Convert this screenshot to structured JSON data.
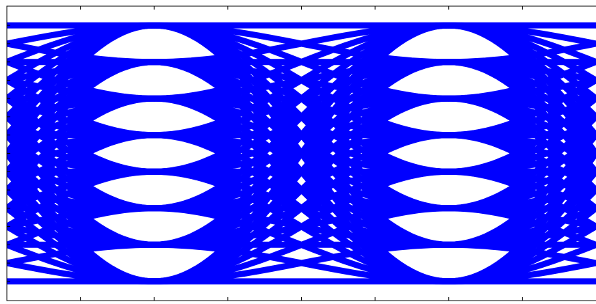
{
  "chart_data": {
    "type": "line",
    "kind": "eye-diagram",
    "color": "#0000ff",
    "levels": 8,
    "symbol_periods_shown": 2,
    "xlim": [
      0,
      2
    ],
    "ylim": [
      -1.15,
      1.15
    ],
    "level_values": [
      -1.0,
      -0.714,
      -0.429,
      -0.143,
      0.143,
      0.429,
      0.714,
      1.0
    ],
    "x_ticks_top": [
      0.25,
      0.5,
      0.75,
      1.0,
      1.25,
      1.5,
      1.75
    ],
    "y_ticks_left": [
      -1.0,
      -0.857,
      -0.714,
      -0.571,
      -0.429,
      -0.286,
      -0.143,
      0.0,
      0.143,
      0.286,
      0.429,
      0.571,
      0.714,
      0.857,
      1.0
    ],
    "grid": false,
    "legend": "none",
    "title": "",
    "xlabel": "",
    "ylabel": ""
  }
}
